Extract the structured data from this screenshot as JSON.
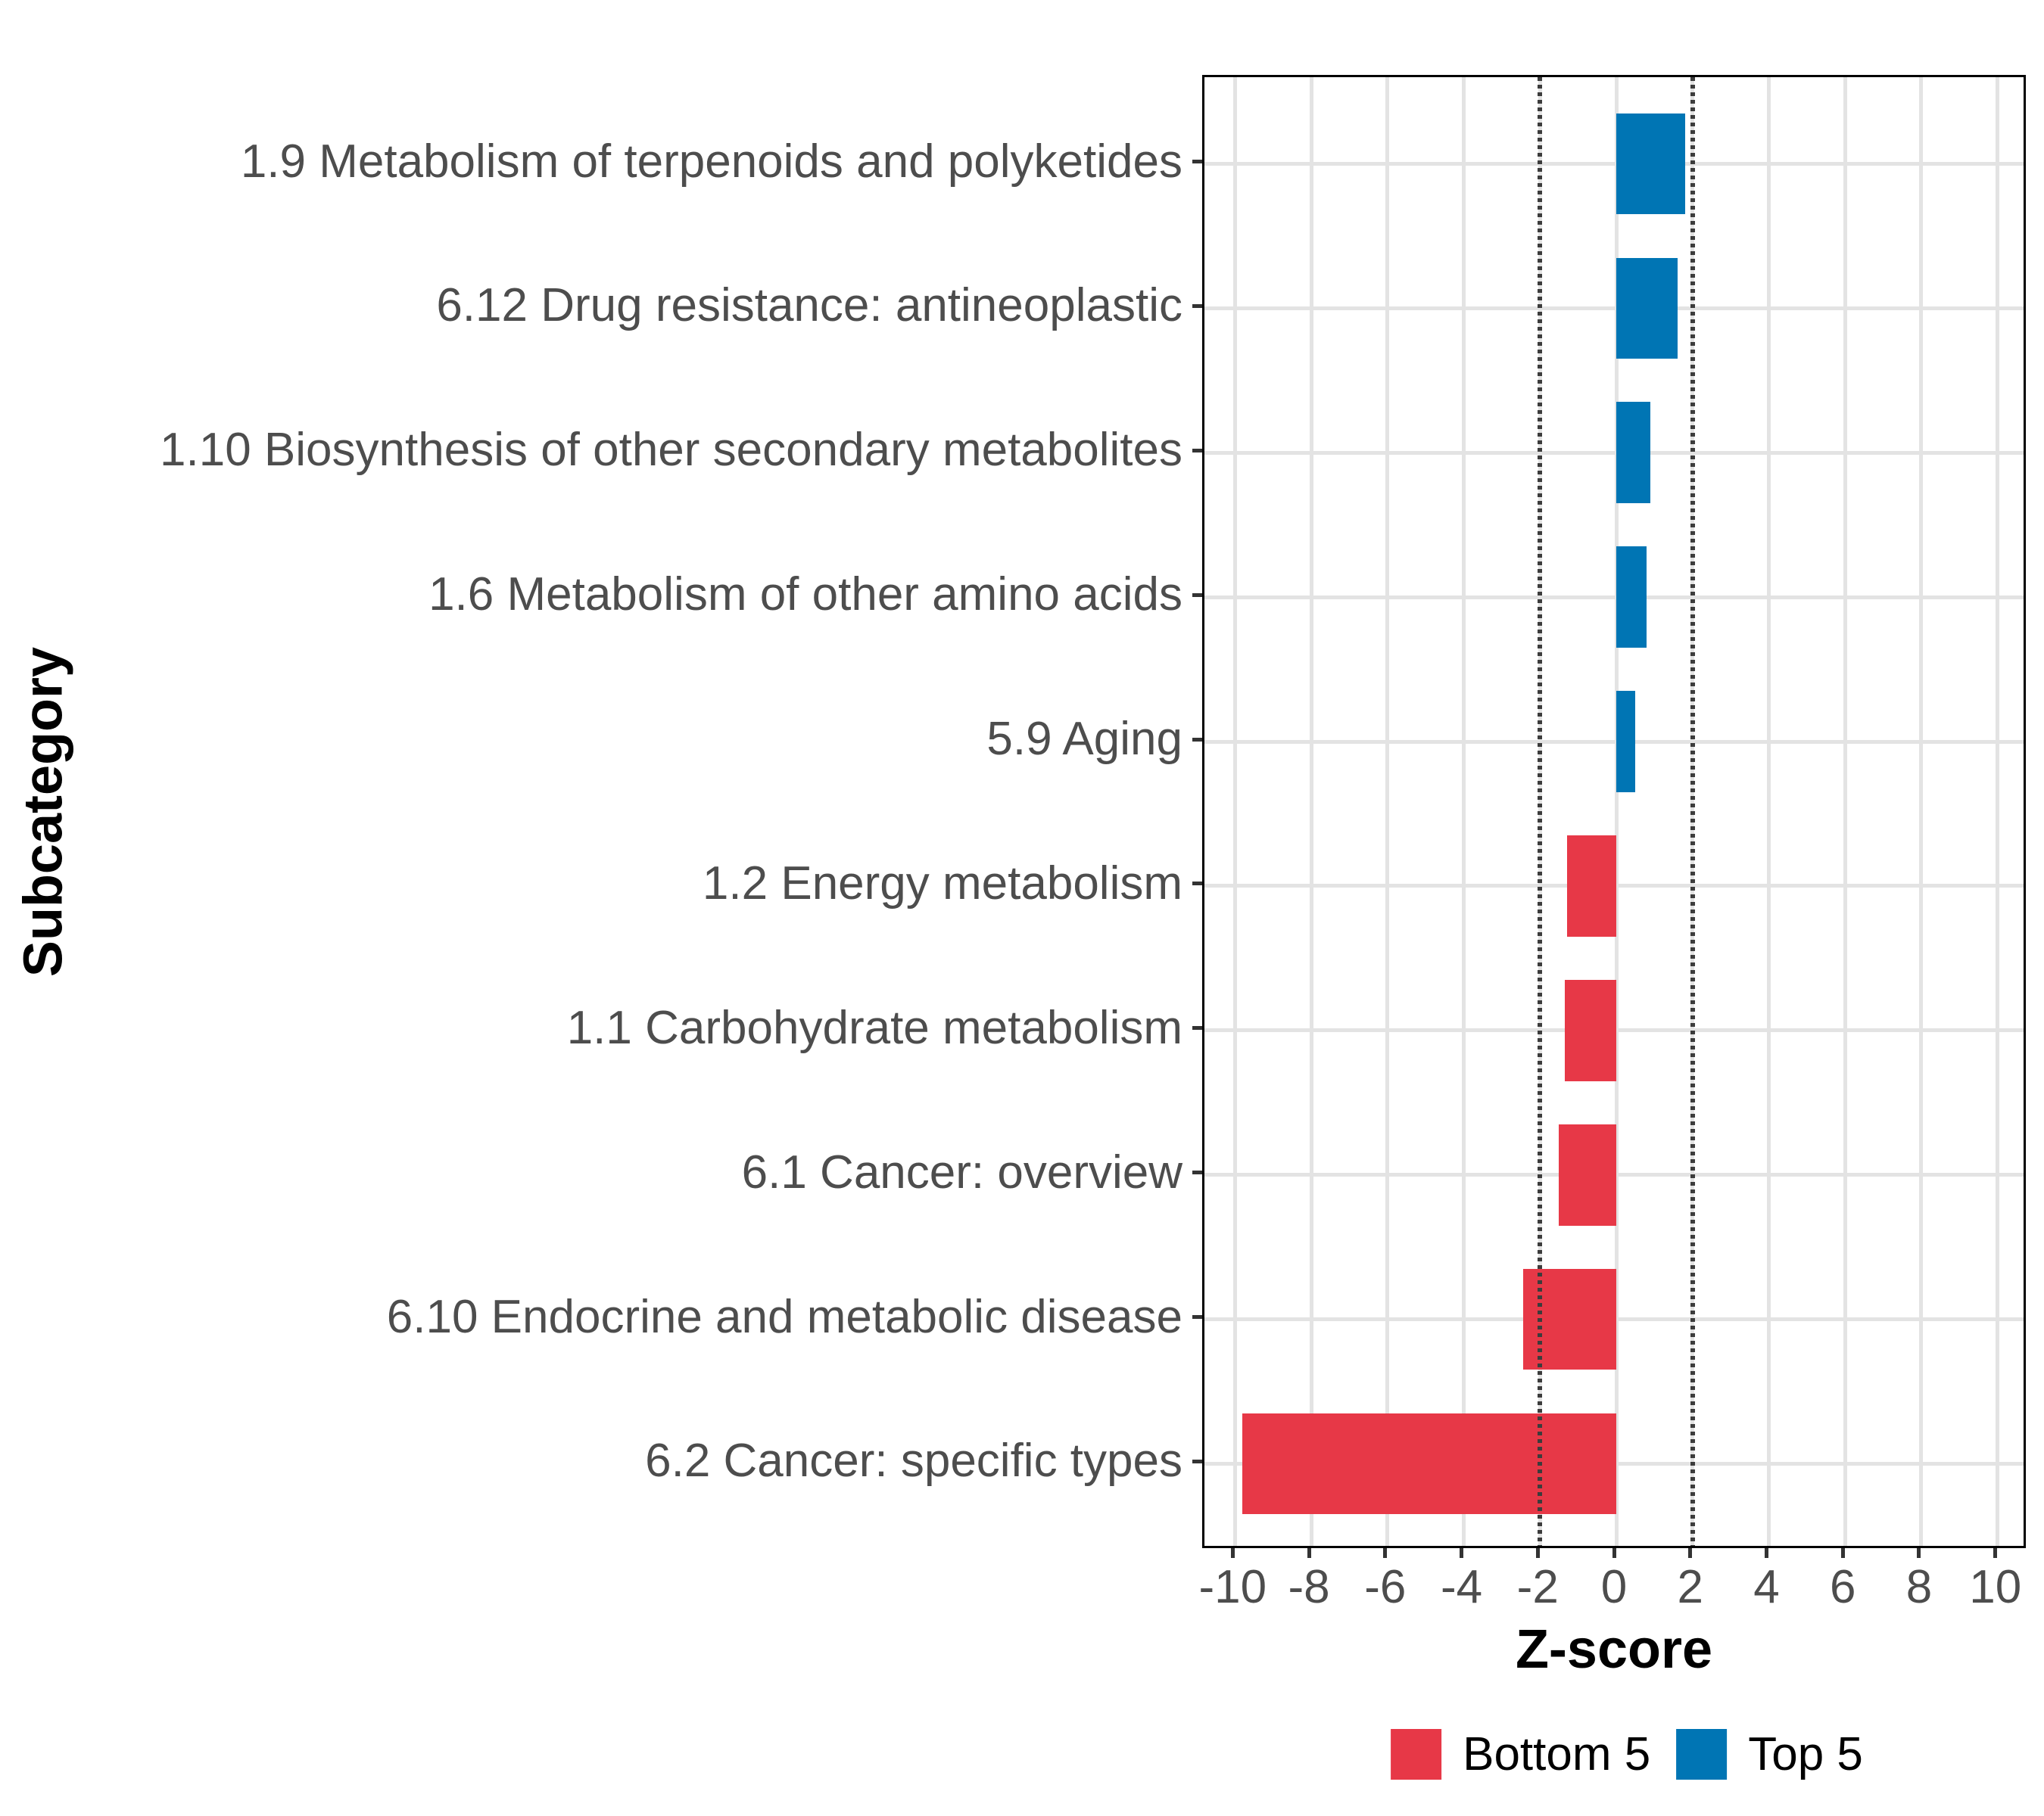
{
  "chart_data": {
    "type": "bar",
    "orientation": "horizontal",
    "title": "",
    "xlabel": "Z-score",
    "ylabel": "Subcategory",
    "xlim": [
      -10.8,
      10.8
    ],
    "x_ticks": [
      -10,
      -8,
      -6,
      -4,
      -2,
      0,
      2,
      4,
      6,
      8,
      10
    ],
    "grid": true,
    "grid_color": "#E3E3E3",
    "panel_border": true,
    "reference_lines": {
      "values": [
        -2,
        2
      ],
      "style": "dotted",
      "color": "#3C3C3C"
    },
    "legend_position": "bottom",
    "categories": [
      "1.9 Metabolism of terpenoids and polyketides",
      "6.12 Drug resistance: antineoplastic",
      "1.10 Biosynthesis of other secondary metabolites",
      "1.6 Metabolism of other amino acids",
      "5.9 Aging",
      "1.2 Energy metabolism",
      "1.1 Carbohydrate metabolism",
      "6.1 Cancer: overview",
      "6.10 Endocrine and metabolic disease",
      "6.2 Cancer: specific types"
    ],
    "bars": [
      {
        "category": "1.9 Metabolism of terpenoids and polyketides",
        "value": 1.8,
        "group": "Top 5"
      },
      {
        "category": "6.12 Drug resistance: antineoplastic",
        "value": 1.6,
        "group": "Top 5"
      },
      {
        "category": "1.10 Biosynthesis of other secondary metabolites",
        "value": 0.9,
        "group": "Top 5"
      },
      {
        "category": "1.6 Metabolism of other amino acids",
        "value": 0.8,
        "group": "Top 5"
      },
      {
        "category": "5.9 Aging",
        "value": 0.5,
        "group": "Top 5"
      },
      {
        "category": "1.2 Energy metabolism",
        "value": -1.3,
        "group": "Bottom 5"
      },
      {
        "category": "1.1 Carbohydrate metabolism",
        "value": -1.35,
        "group": "Bottom 5"
      },
      {
        "category": "6.1 Cancer: overview",
        "value": -1.5,
        "group": "Bottom 5"
      },
      {
        "category": "6.10 Endocrine and metabolic disease",
        "value": -2.45,
        "group": "Bottom 5"
      },
      {
        "category": "6.2 Cancer: specific types",
        "value": -9.8,
        "group": "Bottom 5"
      }
    ],
    "series": [
      {
        "name": "Bottom 5",
        "color": "#E73847"
      },
      {
        "name": "Top 5",
        "color": "#0075B4"
      }
    ]
  },
  "legend": {
    "items": [
      {
        "label": "Bottom 5",
        "color": "#E73847"
      },
      {
        "label": "Top 5",
        "color": "#0075B4"
      }
    ]
  },
  "style": {
    "axis_text_color": "#4D4D4D",
    "tick_color": "#333333",
    "bar_red": "#E73847",
    "bar_blue": "#0075B4",
    "gridline_color": "#E3E3E3"
  }
}
